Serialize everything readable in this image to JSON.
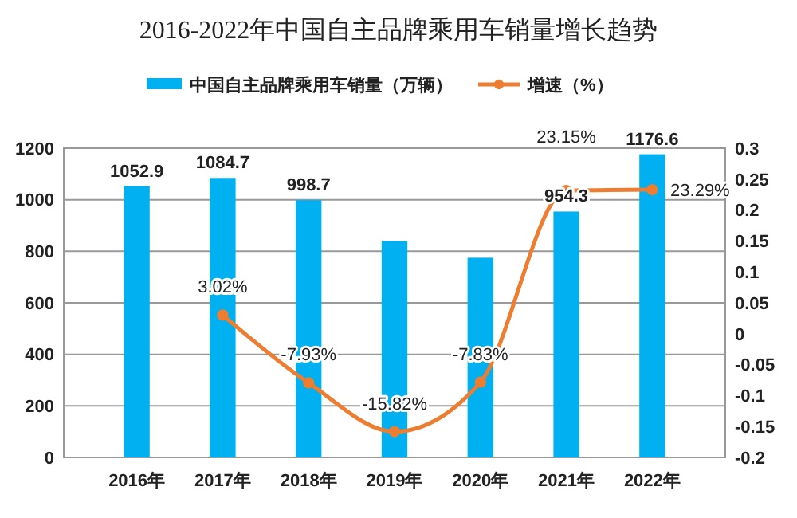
{
  "chart_data": {
    "type": "bar",
    "title": "2016-2022年中国自主品牌乘用车销量增长趋势",
    "categories": [
      "2016年",
      "2017年",
      "2018年",
      "2019年",
      "2020年",
      "2021年",
      "2022年"
    ],
    "series": [
      {
        "name": "中国自主品牌乘用车销量（万辆）",
        "color": "#00b0f0",
        "values": [
          1052.9,
          1084.7,
          998.7,
          840,
          775,
          954.3,
          1176.6
        ],
        "value_labels": [
          "1052.9",
          "1084.7",
          "998.7",
          null,
          null,
          "954.3",
          "1176.6"
        ]
      },
      {
        "name": "增速（%）",
        "type": "line",
        "axis": "y2",
        "color": "#ed7d31",
        "values": [
          null,
          0.0302,
          -0.0793,
          -0.1582,
          -0.0783,
          0.2315,
          0.2329
        ],
        "value_labels": [
          null,
          "3.02%",
          "-7.93%",
          "-15.82%",
          "-7.83%",
          "23.15%",
          "23.29%"
        ]
      }
    ],
    "ylim": [
      0,
      1200
    ],
    "yticks": [
      0,
      200,
      400,
      600,
      800,
      1000,
      1200
    ],
    "y2lim": [
      -0.2,
      0.3
    ],
    "y2ticks": [
      -0.2,
      -0.15,
      -0.1,
      -0.05,
      0,
      0.05,
      0.1,
      0.15,
      0.2,
      0.25,
      0.3
    ],
    "grid": "y",
    "legend": "top",
    "marker": "circle"
  }
}
